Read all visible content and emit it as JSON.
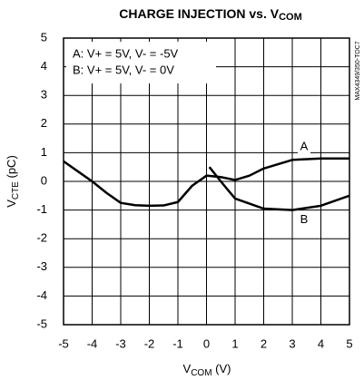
{
  "chart_data": {
    "type": "line",
    "title": [
      "CHARGE INJECTION vs. V",
      "COM"
    ],
    "x_label": [
      "V",
      "COM",
      " (V)"
    ],
    "y_label": [
      "V",
      "CTE",
      " (pC)"
    ],
    "side_note": "MAX4349/350-TOC7",
    "legend_lines": [
      "A: V+ = 5V, V- = -5V",
      "B: V+ = 5V, V- = 0V"
    ],
    "xlim": [
      -5,
      5
    ],
    "xticks": [
      -5,
      -4,
      -3,
      -2,
      -1,
      0,
      1,
      2,
      3,
      4,
      5
    ],
    "ylim": [
      -5,
      5
    ],
    "yticks": [
      -5,
      -4,
      -3,
      -2,
      -1,
      0,
      1,
      2,
      3,
      4,
      5
    ],
    "grid": true,
    "series": [
      {
        "name": "A",
        "color": "#000000",
        "x": [
          -5,
          -4.5,
          -4,
          -3.5,
          -3,
          -2.5,
          -2,
          -1.5,
          -1,
          -0.5,
          0,
          0.5,
          1,
          1.5,
          2,
          3,
          4,
          5
        ],
        "values": [
          0.7,
          0.35,
          0,
          -0.4,
          -0.75,
          -0.83,
          -0.85,
          -0.84,
          -0.72,
          -0.15,
          0.2,
          0.15,
          0.05,
          0.2,
          0.45,
          0.75,
          0.8,
          0.8
        ]
      },
      {
        "name": "B",
        "color": "#000000",
        "x": [
          0.1,
          0.5,
          1,
          2,
          3,
          4,
          5
        ],
        "values": [
          0.5,
          0,
          -0.6,
          -0.95,
          -1,
          -0.85,
          -0.5
        ]
      }
    ]
  }
}
